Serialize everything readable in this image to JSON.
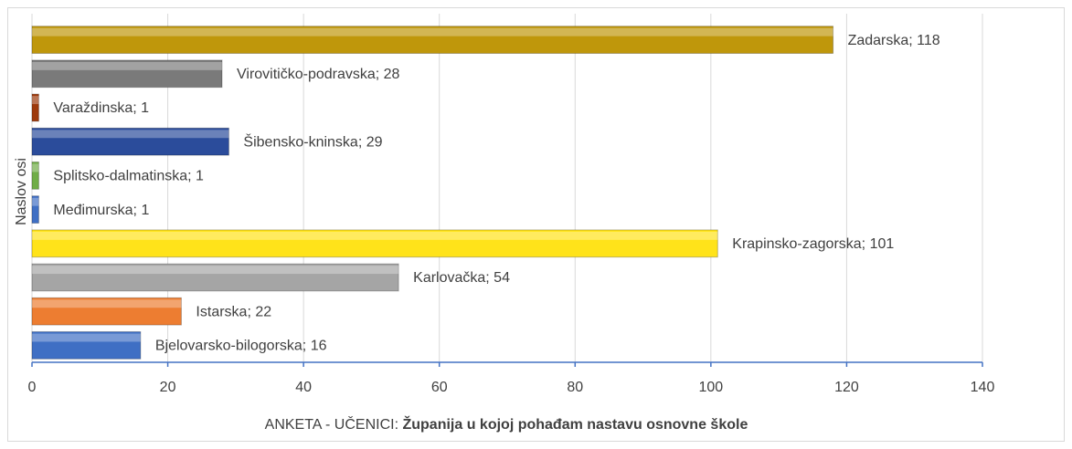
{
  "chart_data": {
    "type": "bar",
    "orientation": "horizontal",
    "value_labels": [
      "Bjelovarsko-bilogorska; 16",
      "Istarska; 22",
      "Karlovačka; 54",
      "Krapinsko-zagorska; 101",
      "Međimurska; 1",
      "Splitsko-dalmatinska; 1",
      "Šibensko-kninska; 29",
      "Varaždinska; 1",
      "Virovitičko-podravska; 28",
      "Zadarska; 118"
    ],
    "values": [
      16,
      22,
      54,
      101,
      1,
      1,
      29,
      1,
      28,
      118
    ],
    "colors": [
      "#3f6fc4",
      "#ed7d31",
      "#a5a5a5",
      "#ffe31a",
      "#3f6fc4",
      "#70ad47",
      "#2b4c9b",
      "#9e3a0c",
      "#7a7a7a",
      "#bf970b"
    ],
    "xlim": [
      0,
      140
    ],
    "xticks": [
      0,
      20,
      40,
      60,
      80,
      100,
      120,
      140
    ],
    "grid": true,
    "x_label": [
      "ANKETA - UČENICI: ",
      "Županija u kojoj pohađam nastavu osnovne škole"
    ],
    "y_label": "Naslov osi"
  }
}
